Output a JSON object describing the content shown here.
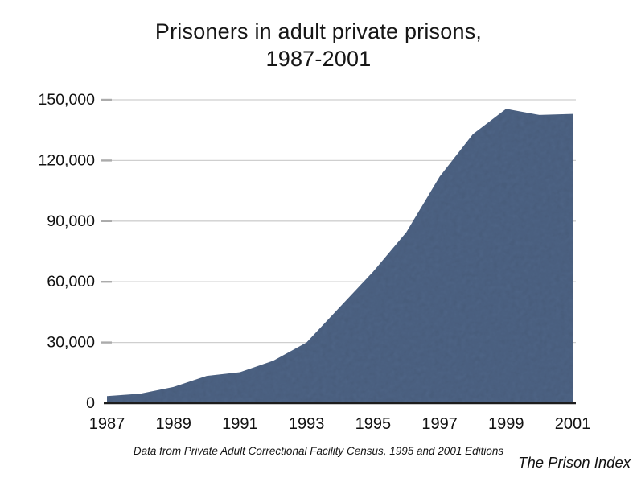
{
  "slide": {
    "title_line1": "Prisoners in adult private prisons,",
    "title_line2": "1987-2001",
    "caption": "Data from Private Adult Correctional Facility Census, 1995 and 2001 Editions",
    "credit": "The Prison Index"
  },
  "colors": {
    "area_fill": "#51688b",
    "gridline": "#cfcfcf",
    "tick": "#ababab",
    "axis_line": "#1c1c1c",
    "text": "#111111"
  },
  "chart_data": {
    "type": "area",
    "title": "Prisoners in adult private prisons, 1987-2001",
    "x": [
      1987,
      1988,
      1989,
      1990,
      1991,
      1992,
      1993,
      1994,
      1995,
      1996,
      1997,
      1998,
      1999,
      2000,
      2001
    ],
    "values": [
      3500,
      4700,
      8000,
      13500,
      15300,
      21000,
      30000,
      47500,
      65000,
      84500,
      112000,
      133000,
      145500,
      142500,
      143000
    ],
    "xlim": [
      1987,
      2001
    ],
    "ylim": [
      0,
      150000
    ],
    "x_ticks": [
      1987,
      1989,
      1991,
      1993,
      1995,
      1997,
      1999,
      2001
    ],
    "x_tick_labels": [
      "1987",
      "1989",
      "1991",
      "1993",
      "1995",
      "1997",
      "1999",
      "2001"
    ],
    "y_ticks": [
      0,
      30000,
      60000,
      90000,
      120000,
      150000
    ],
    "y_tick_labels": [
      "0",
      "30,000",
      "60,000",
      "90,000",
      "120,000",
      "150,000"
    ],
    "grid": "horizontal-only",
    "legend": "none",
    "area_color": "#51688b",
    "source_note": "Data from Private Adult Correctional Facility Census, 1995 and 2001 Editions",
    "credit": "The Prison Index"
  }
}
